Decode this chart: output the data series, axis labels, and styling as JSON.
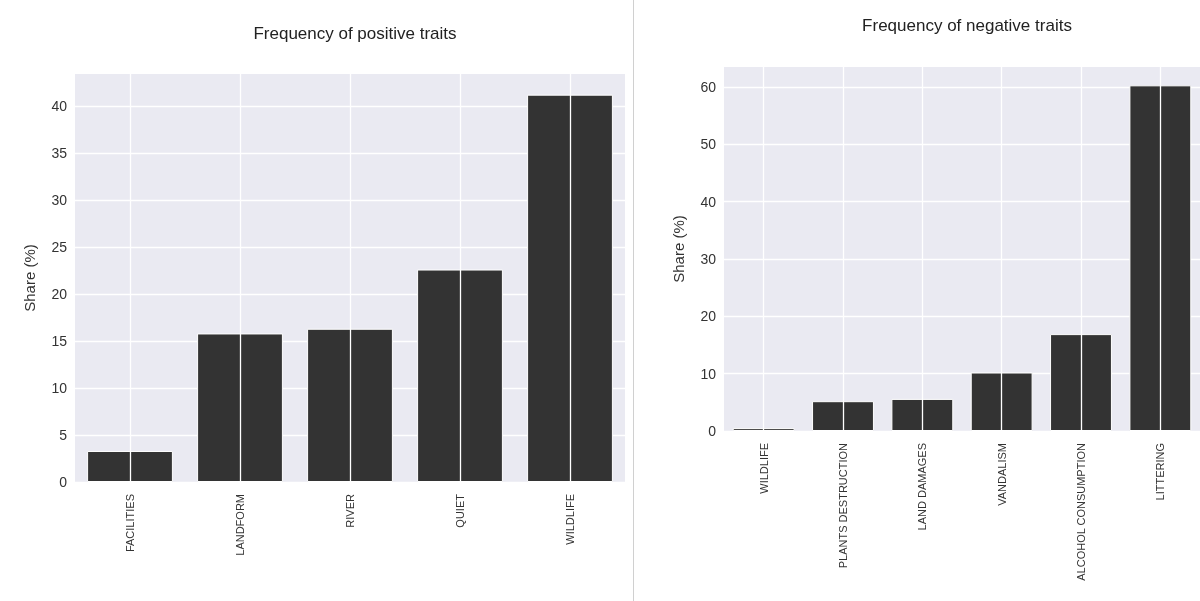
{
  "chart_data": [
    {
      "type": "bar",
      "title": "Frequency of positive traits",
      "ylabel": "Share (%)",
      "categories": [
        "FACILITIES",
        "LANDFORM",
        "RIVER",
        "QUIET",
        "WILDLIFE"
      ],
      "values": [
        3.3,
        15.8,
        16.3,
        22.6,
        41.2
      ],
      "color": "#333333",
      "ylim": [
        0,
        43.4
      ],
      "yticks": [
        0,
        5,
        10,
        15,
        20,
        25,
        30,
        35,
        40
      ],
      "grid": true
    },
    {
      "type": "bar",
      "title": "Frequency of negative traits",
      "ylabel": "Share (%)",
      "categories": [
        "WILDLIFE",
        "PLANTS DESTRUCTION",
        "LAND DAMAGES",
        "VANDALISM",
        "ALCOHOL CONSUMPTION",
        "LITTERING"
      ],
      "values": [
        0.5,
        5.2,
        5.6,
        10.2,
        16.9,
        60.3
      ],
      "color": "#333333",
      "ylim": [
        0,
        63.5
      ],
      "yticks": [
        0,
        10,
        20,
        30,
        40,
        50,
        60
      ],
      "grid": true
    }
  ]
}
